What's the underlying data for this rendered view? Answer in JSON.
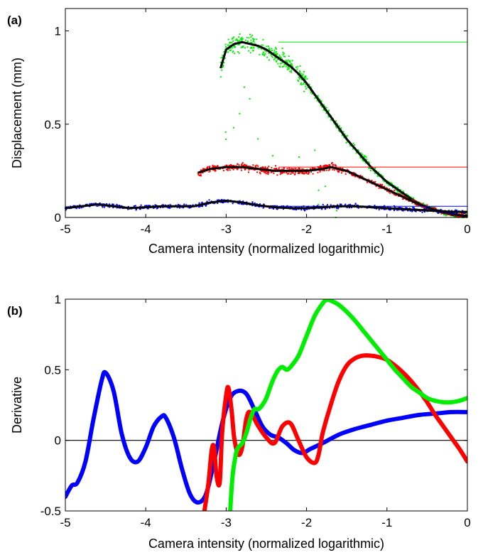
{
  "chart_data": [
    {
      "type": "scatter",
      "panel_label": "(a)",
      "xlabel": "Camera intensity (normalized logarithmic)",
      "ylabel": "Displacement (mm)",
      "xlim": [
        -5,
        0
      ],
      "ylim": [
        0,
        1.12
      ],
      "xticks": [
        -5,
        -4,
        -3,
        -2,
        -1,
        0
      ],
      "xtick_labels": [
        "-5",
        "-4",
        "-3",
        "-2",
        "-1",
        "0"
      ],
      "yticks": [
        0,
        0.5,
        1
      ],
      "ytick_labels": [
        "0",
        "0.5",
        "1"
      ],
      "grid": false,
      "series": [
        {
          "color": "#00ee00",
          "style": "scatter",
          "x": [
            -3.07,
            -3.0,
            -2.9,
            -2.8,
            -2.7,
            -2.6,
            -2.5,
            -2.4,
            -2.3,
            -2.2,
            -2.1,
            -2.0,
            -1.9,
            -1.8,
            -1.7,
            -1.6,
            -1.5,
            -1.4,
            -1.3,
            -1.2,
            -1.1,
            -1.0,
            -0.9,
            -0.8,
            -0.7,
            -0.6,
            -0.5,
            -0.4,
            -0.3,
            -0.2,
            -0.1,
            0.0
          ],
          "y": [
            0.8,
            0.9,
            0.93,
            0.94,
            0.93,
            0.92,
            0.9,
            0.87,
            0.84,
            0.81,
            0.77,
            0.72,
            0.66,
            0.6,
            0.54,
            0.48,
            0.42,
            0.37,
            0.32,
            0.27,
            0.23,
            0.19,
            0.16,
            0.13,
            0.1,
            0.075,
            0.055,
            0.04,
            0.025,
            0.015,
            0.008,
            0.005
          ],
          "reference_line": 0.94
        },
        {
          "color": "#ff0000",
          "style": "scatter",
          "x": [
            -3.35,
            -3.2,
            -3.0,
            -2.8,
            -2.6,
            -2.4,
            -2.2,
            -2.0,
            -1.8,
            -1.7,
            -1.6,
            -1.5,
            -1.4,
            -1.3,
            -1.2,
            -1.1,
            -1.0,
            -0.9,
            -0.8,
            -0.7,
            -0.6,
            -0.5,
            -0.4,
            -0.3,
            -0.2,
            -0.1,
            0.0
          ],
          "y": [
            0.24,
            0.26,
            0.27,
            0.27,
            0.26,
            0.25,
            0.25,
            0.25,
            0.26,
            0.27,
            0.26,
            0.25,
            0.23,
            0.21,
            0.19,
            0.17,
            0.15,
            0.13,
            0.11,
            0.09,
            0.07,
            0.055,
            0.04,
            0.03,
            0.02,
            0.012,
            0.008
          ],
          "reference_line": 0.27
        },
        {
          "color": "#0000ff",
          "style": "scatter",
          "x": [
            -5.0,
            -4.8,
            -4.6,
            -4.4,
            -4.2,
            -4.0,
            -3.8,
            -3.6,
            -3.4,
            -3.2,
            -3.0,
            -2.8,
            -2.6,
            -2.4,
            -2.2,
            -2.0,
            -1.8,
            -1.6,
            -1.4,
            -1.2,
            -1.0,
            -0.8,
            -0.6,
            -0.4,
            -0.2,
            0.0
          ],
          "y": [
            0.05,
            0.06,
            0.07,
            0.06,
            0.05,
            0.055,
            0.06,
            0.06,
            0.06,
            0.08,
            0.09,
            0.08,
            0.065,
            0.055,
            0.05,
            0.05,
            0.055,
            0.06,
            0.06,
            0.055,
            0.05,
            0.045,
            0.04,
            0.035,
            0.03,
            0.03
          ],
          "reference_line": 0.06
        }
      ]
    },
    {
      "type": "line",
      "panel_label": "(b)",
      "xlabel": "Camera intensity (normalized logarithmic)",
      "ylabel": "Derivative",
      "xlim": [
        -5,
        0
      ],
      "ylim": [
        -0.5,
        1
      ],
      "xticks": [
        -5,
        -4,
        -3,
        -2,
        -1,
        0
      ],
      "xtick_labels": [
        "-5",
        "-4",
        "-3",
        "-2",
        "-1",
        "0"
      ],
      "yticks": [
        -0.5,
        0,
        0.5,
        1
      ],
      "ytick_labels": [
        "-0.5",
        "0",
        "0.5",
        "1"
      ],
      "grid": false,
      "zero_line": true,
      "series": [
        {
          "color": "#0000ff",
          "x": [
            -5.0,
            -4.92,
            -4.85,
            -4.75,
            -4.65,
            -4.55,
            -4.5,
            -4.4,
            -4.3,
            -4.2,
            -4.1,
            -4.0,
            -3.9,
            -3.8,
            -3.75,
            -3.65,
            -3.55,
            -3.45,
            -3.35,
            -3.25,
            -3.15,
            -3.05,
            -2.95,
            -2.85,
            -2.75,
            -2.65,
            -2.55,
            -2.45,
            -2.35,
            -2.25,
            -2.15,
            -2.05,
            -1.95,
            -1.8,
            -1.6,
            -1.4,
            -1.2,
            -1.0,
            -0.8,
            -0.6,
            -0.4,
            -0.2,
            0.0
          ],
          "y": [
            -0.4,
            -0.32,
            -0.3,
            -0.15,
            0.15,
            0.42,
            0.48,
            0.35,
            0.05,
            -0.12,
            -0.15,
            -0.05,
            0.1,
            0.17,
            0.16,
            0.02,
            -0.2,
            -0.38,
            -0.44,
            -0.38,
            -0.15,
            0.12,
            0.3,
            0.35,
            0.33,
            0.22,
            0.1,
            0.04,
            0.02,
            -0.02,
            -0.07,
            -0.09,
            -0.06,
            -0.02,
            0.04,
            0.08,
            0.11,
            0.14,
            0.16,
            0.18,
            0.19,
            0.2,
            0.2
          ]
        },
        {
          "color": "#ff0000",
          "x": [
            -3.27,
            -3.22,
            -3.18,
            -3.15,
            -3.12,
            -3.08,
            -3.05,
            -3.0,
            -2.97,
            -2.93,
            -2.9,
            -2.85,
            -2.8,
            -2.75,
            -2.7,
            -2.6,
            -2.5,
            -2.4,
            -2.3,
            -2.2,
            -2.1,
            -2.0,
            -1.9,
            -1.85,
            -1.8,
            -1.7,
            -1.6,
            -1.5,
            -1.4,
            -1.3,
            -1.2,
            -1.1,
            -1.0,
            -0.9,
            -0.8,
            -0.7,
            -0.6,
            -0.5,
            -0.4,
            -0.3,
            -0.2,
            -0.1,
            0.0
          ],
          "y": [
            -0.5,
            -0.3,
            -0.07,
            -0.05,
            -0.25,
            -0.3,
            0.05,
            0.32,
            0.37,
            0.2,
            0.02,
            -0.1,
            -0.05,
            0.15,
            0.2,
            0.1,
            0.02,
            -0.02,
            0.1,
            0.12,
            0.0,
            -0.12,
            -0.16,
            -0.1,
            0.05,
            0.25,
            0.42,
            0.53,
            0.58,
            0.6,
            0.6,
            0.59,
            0.57,
            0.53,
            0.48,
            0.42,
            0.35,
            0.27,
            0.18,
            0.1,
            0.02,
            -0.06,
            -0.15
          ]
        },
        {
          "color": "#00ee00",
          "x": [
            -2.95,
            -2.92,
            -2.88,
            -2.85,
            -2.8,
            -2.75,
            -2.7,
            -2.65,
            -2.6,
            -2.55,
            -2.5,
            -2.45,
            -2.4,
            -2.35,
            -2.3,
            -2.25,
            -2.2,
            -2.1,
            -2.0,
            -1.9,
            -1.8,
            -1.75,
            -1.7,
            -1.6,
            -1.5,
            -1.4,
            -1.3,
            -1.2,
            -1.1,
            -1.0,
            -0.9,
            -0.8,
            -0.7,
            -0.6,
            -0.5,
            -0.4,
            -0.3,
            -0.2,
            -0.1,
            0.0
          ],
          "y": [
            -0.5,
            -0.25,
            -0.1,
            -0.05,
            -0.02,
            0.05,
            0.15,
            0.22,
            0.22,
            0.25,
            0.3,
            0.38,
            0.45,
            0.5,
            0.52,
            0.5,
            0.52,
            0.6,
            0.74,
            0.88,
            0.97,
            0.995,
            0.99,
            0.96,
            0.91,
            0.85,
            0.78,
            0.71,
            0.64,
            0.57,
            0.5,
            0.44,
            0.38,
            0.34,
            0.3,
            0.28,
            0.27,
            0.27,
            0.28,
            0.3
          ]
        }
      ]
    }
  ]
}
